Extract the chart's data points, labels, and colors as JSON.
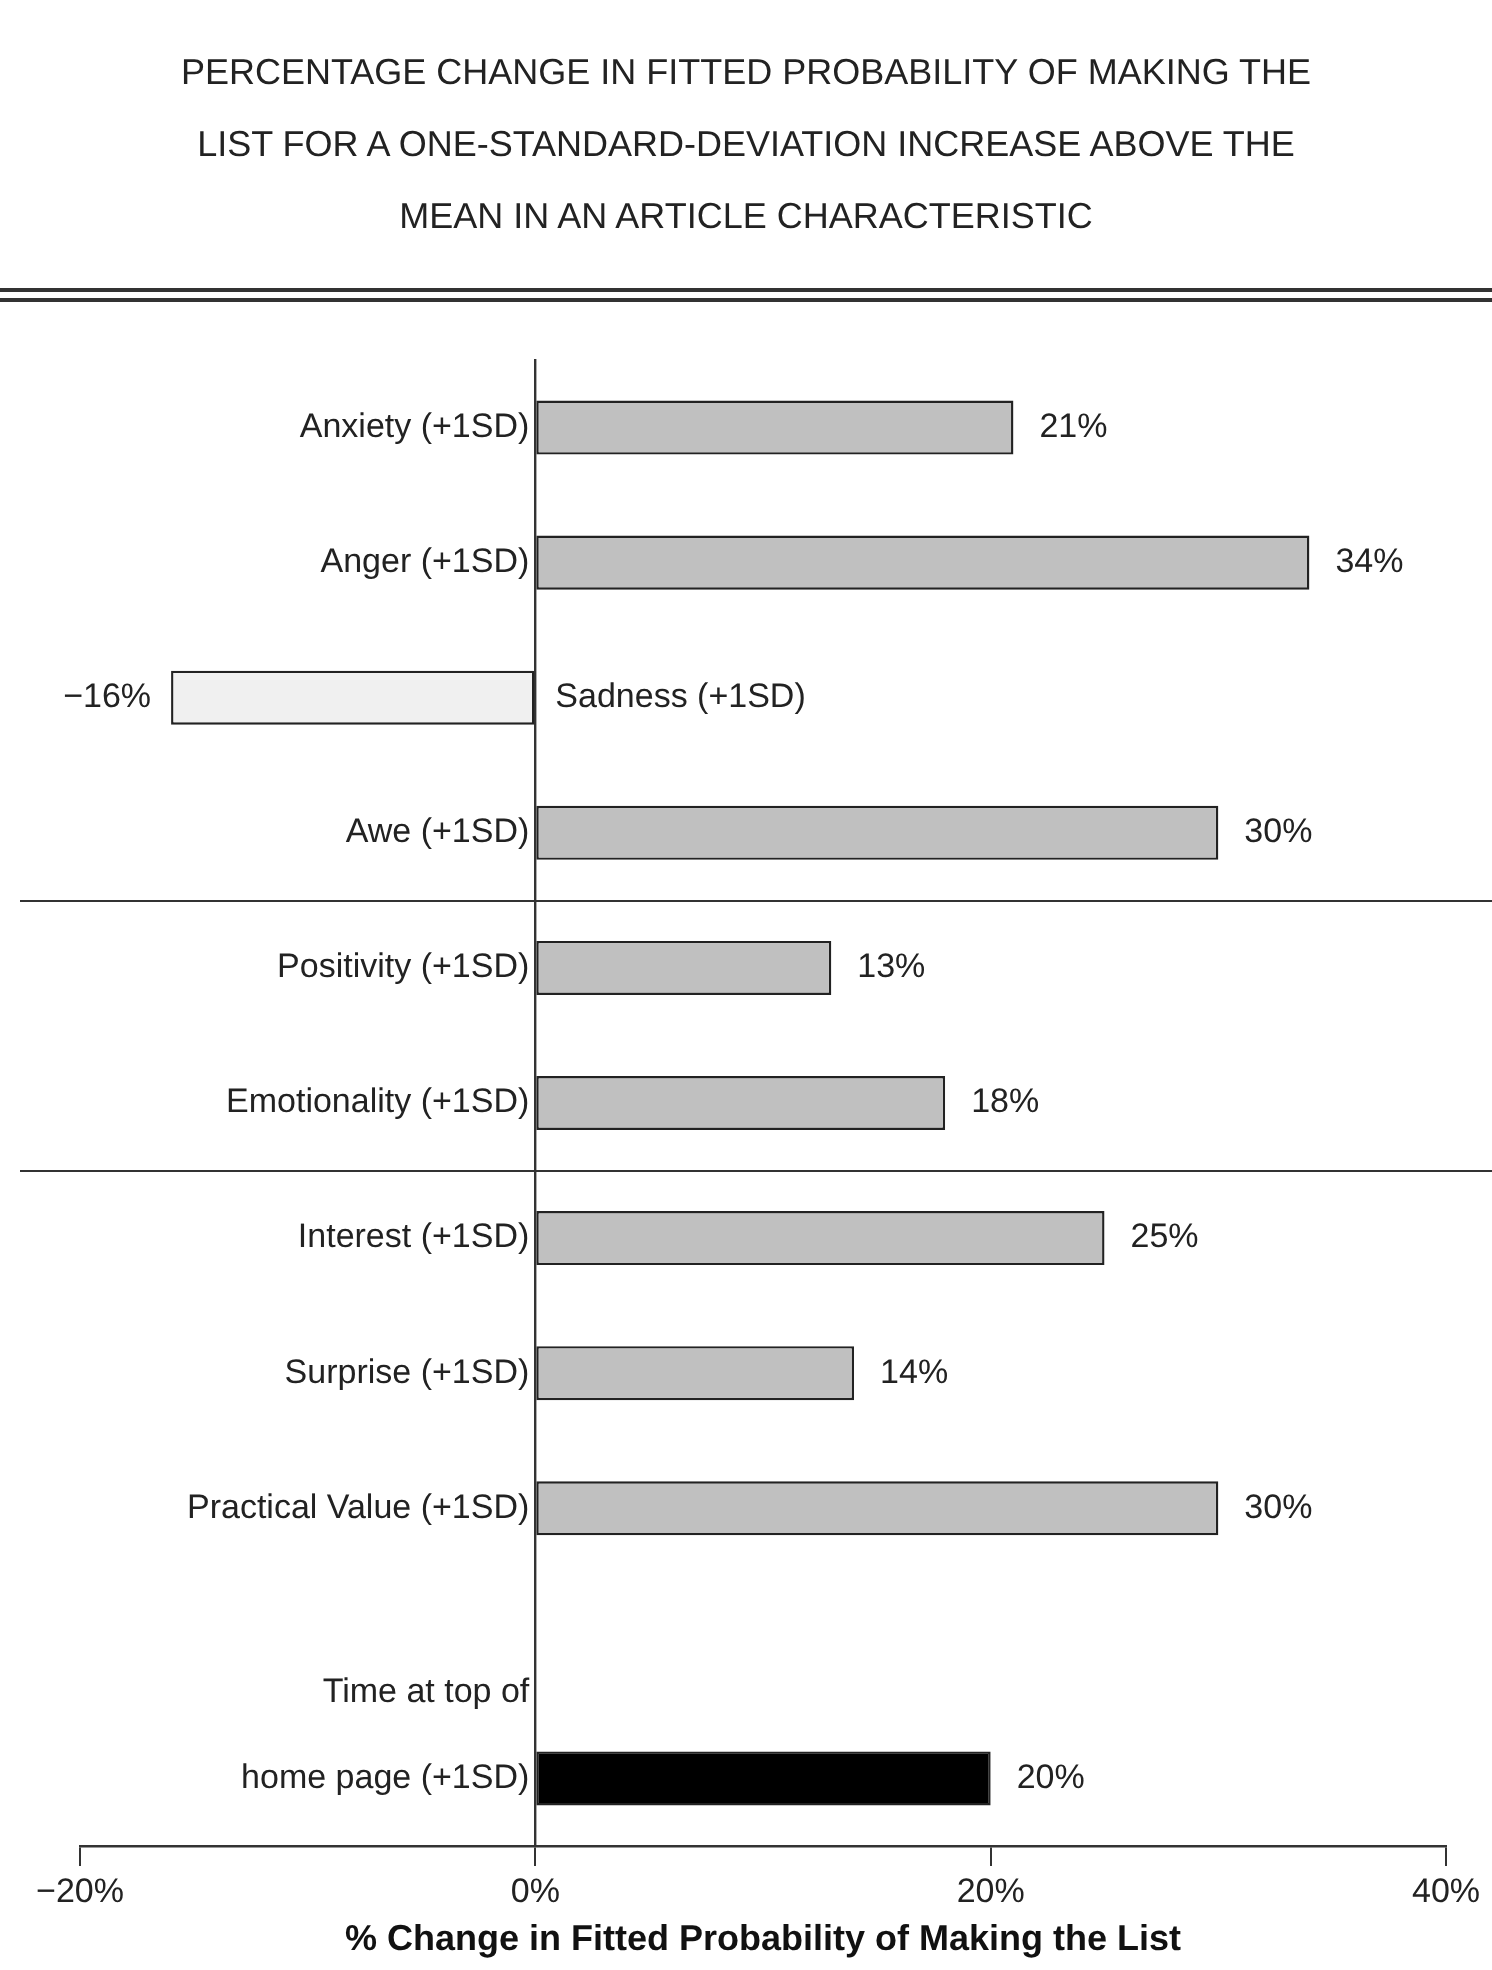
{
  "chart_data": {
    "type": "bar",
    "orientation": "horizontal",
    "title": "PERCENTAGE CHANGE IN FITTED PROBABILITY OF MAKING THE LIST FOR A ONE-STANDARD-DEVIATION INCREASE ABOVE THE MEAN IN AN ARTICLE CHARACTERISTIC",
    "xlabel": "% Change in Fitted Probability of Making the List",
    "categories": [
      "Anxiety (+1SD)",
      "Anger (+1SD)",
      "Sadness (+1SD)",
      "Awe (+1SD)",
      "Positivity (+1SD)",
      "Emotionality (+1SD)",
      "Interest (+1SD)",
      "Surprise (+1SD)",
      "Practical Value (+1SD)",
      null,
      "Time at top of\nhome page (+1SD)"
    ],
    "values": [
      21,
      34,
      -16,
      30,
      13,
      18,
      25,
      14,
      30,
      null,
      20
    ],
    "value_labels": [
      "21%",
      "34%",
      "−16%",
      "30%",
      "13%",
      "18%",
      "25%",
      "14%",
      "30%",
      null,
      "20%"
    ],
    "colors": [
      "#c0c0c0",
      "#c0c0c0",
      "#f0f0f0",
      "#c0c0c0",
      "#c0c0c0",
      "#c0c0c0",
      "#c0c0c0",
      "#c0c0c0",
      "#c0c0c0",
      "#c0c0c0",
      "#000000"
    ],
    "xlim": [
      -20,
      40
    ],
    "xticks": [
      {
        "value": -20,
        "label": "−20%"
      },
      {
        "value": 0,
        "label": "0%"
      },
      {
        "value": 20,
        "label": "20%"
      },
      {
        "value": 40,
        "label": "40%"
      }
    ],
    "grid": false,
    "legend": false
  }
}
